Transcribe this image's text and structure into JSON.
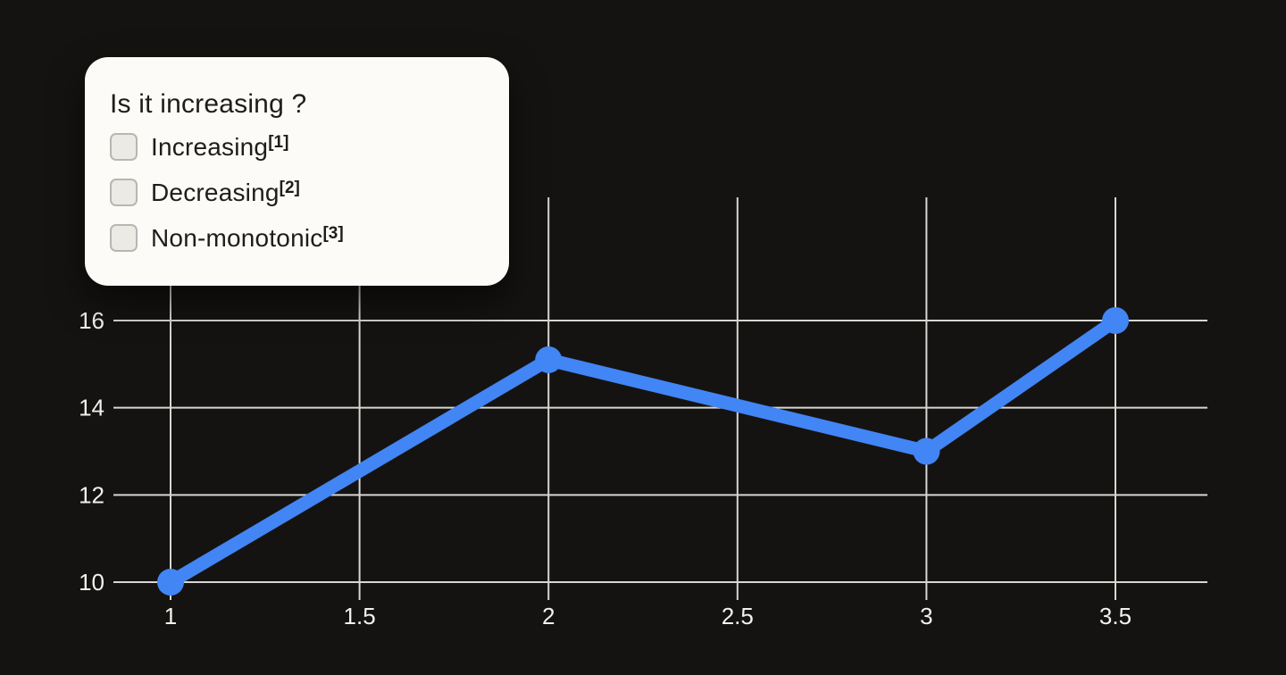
{
  "question_card": {
    "title": "Is it increasing ?",
    "options": [
      {
        "label": "Increasing",
        "superscript": "[1]"
      },
      {
        "label": "Decreasing",
        "superscript": "[2]"
      },
      {
        "label": "Non-monotonic",
        "superscript": "[3]"
      }
    ]
  },
  "colors": {
    "background": "#151311",
    "card_background": "#fcfbf8",
    "card_text": "#1e1d1a",
    "checkbox_fill": "#eceae5",
    "checkbox_border": "#b8b6af",
    "grid_line": "#d8d6d2",
    "axis_label": "#f3f1ee",
    "series_line": "#4285f4"
  },
  "chart_data": {
    "type": "line",
    "title": "",
    "xlabel": "",
    "ylabel": "",
    "x": [
      1,
      2,
      3,
      3.5
    ],
    "y": [
      10,
      15.1,
      13,
      16
    ],
    "x_ticks": [
      1,
      1.5,
      2,
      2.5,
      3,
      3.5
    ],
    "x_tick_labels": [
      "1",
      "1.5",
      "2",
      "2.5",
      "3",
      "3.5"
    ],
    "y_ticks": [
      10,
      12,
      14,
      16
    ],
    "y_tick_labels": [
      "10",
      "12",
      "14",
      "16"
    ],
    "xlim": [
      1,
      3.5
    ],
    "ylim": [
      10,
      16
    ],
    "grid": true,
    "legend": false,
    "marker": "circle"
  }
}
